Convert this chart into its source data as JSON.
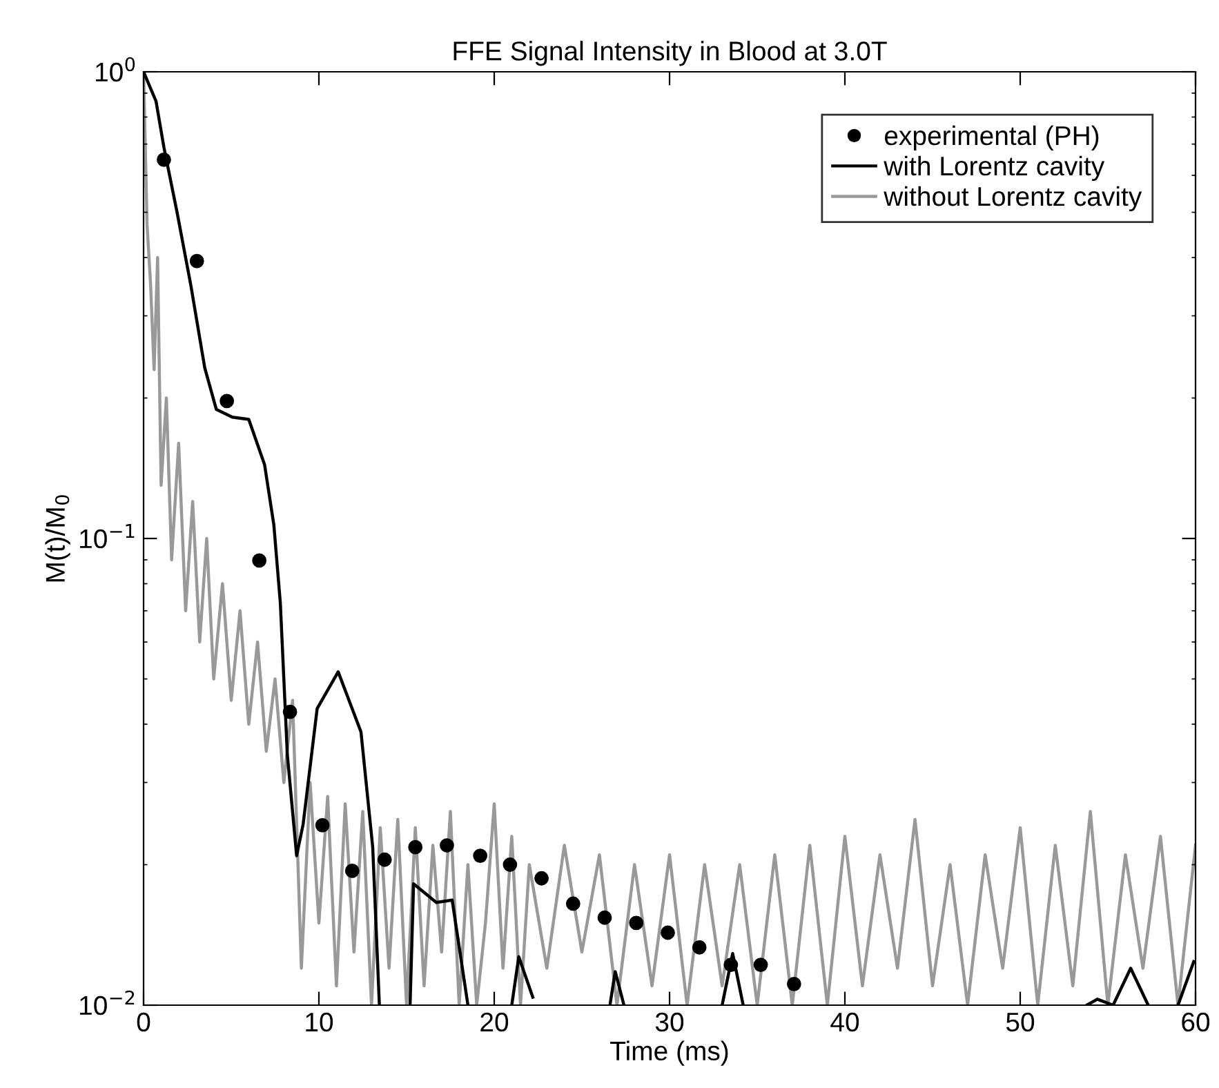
{
  "chart_data": {
    "type": "line",
    "title": "FFE Signal Intensity in Blood at 3.0T",
    "xlabel": "Time (ms)",
    "ylabel": "M(t)/M$_{0}$",
    "log": "y",
    "xlim": [
      0,
      60
    ],
    "ylim": [
      0.01,
      1
    ],
    "xticks": [
      0,
      10,
      20,
      30,
      40,
      50,
      60
    ],
    "yticks": [
      {
        "value": 0.01,
        "label": "10$^{−2}$"
      },
      {
        "value": 0.1,
        "label": "10$^{−1}$"
      },
      {
        "value": 1,
        "label": "10$^{0}$"
      }
    ],
    "grid": false,
    "legend": "top right",
    "series": [
      {
        "name": "experimental (PH)",
        "type": "scatter",
        "marker": "circle",
        "color": "#000000",
        "x": [
          1.16,
          3.04,
          4.75,
          6.6,
          8.35,
          10.2,
          11.9,
          13.75,
          15.5,
          17.3,
          19.2,
          20.9,
          22.7,
          24.5,
          26.3,
          28.1,
          29.9,
          31.7,
          33.5,
          35.2,
          37.1
        ],
        "values": [
          0.648,
          0.393,
          0.197,
          0.0897,
          0.0425,
          0.0243,
          0.0194,
          0.0205,
          0.0218,
          0.022,
          0.0209,
          0.02,
          0.0187,
          0.0165,
          0.0154,
          0.015,
          0.0143,
          0.0133,
          0.0122,
          0.0122,
          0.0111
        ]
      },
      {
        "name": "with Lorentz cavity",
        "line_style": "solid",
        "color": "#000000",
        "x": [
          0,
          0.71,
          1.16,
          1.91,
          2.7,
          3.49,
          4.15,
          5.06,
          6.0,
          6.9,
          7.43,
          7.8,
          8.2,
          8.73,
          9.1,
          9.9,
          11.1,
          12.4,
          13.07,
          13.45,
          14,
          15.2,
          15.4,
          16.7,
          17.6,
          18.5,
          19,
          21.0,
          21.4,
          22.2,
          23,
          26.6,
          26.9,
          27.4,
          28,
          33.0,
          33.6,
          34.2,
          35,
          53.8,
          54.4,
          55.3,
          56.3,
          57.3,
          58,
          59,
          59.9
        ],
        "values": [
          1,
          0.865,
          0.689,
          0.5,
          0.348,
          0.232,
          0.189,
          0.182,
          0.18,
          0.144,
          0.107,
          0.0728,
          0.0344,
          0.0209,
          0.0244,
          0.0432,
          0.0518,
          0.0385,
          0.0218,
          0.01,
          null,
          0.01,
          0.0182,
          0.0166,
          0.0168,
          0.01,
          null,
          0.01,
          0.0127,
          0.0104,
          null,
          0.01,
          0.0118,
          0.01,
          null,
          0.01,
          0.0129,
          0.01,
          null,
          0.01,
          0.0103,
          0.01,
          0.012,
          0.01,
          null,
          0.01,
          0.0124
        ]
      },
      {
        "name": "without Lorentz cavity",
        "line_style": "solid",
        "color": "#999999",
        "x": [
          0,
          0.2,
          0.4,
          0.6,
          0.8,
          1.0,
          1.3,
          1.6,
          2.0,
          2.4,
          2.8,
          3.2,
          3.6,
          4.0,
          4.5,
          5.0,
          5.5,
          6.0,
          6.5,
          7.0,
          7.5,
          8.0,
          8.5,
          9.0,
          9.5,
          10,
          10.5,
          11,
          11.5,
          12,
          12.5,
          13,
          13.5,
          14,
          14.5,
          15,
          15.5,
          16,
          16.5,
          17,
          17.5,
          18,
          18.5,
          19,
          19.5,
          20,
          20.5,
          21,
          21.5,
          22,
          23,
          24,
          25,
          26,
          27,
          28,
          29,
          30,
          31,
          32,
          33,
          34,
          35,
          36,
          37,
          38,
          39,
          40,
          41,
          42,
          43,
          44,
          45,
          46,
          47,
          48,
          49,
          50,
          51,
          52,
          53,
          54,
          55,
          56,
          57,
          58,
          59,
          60
        ],
        "values": [
          1,
          0.47,
          0.35,
          0.23,
          0.4,
          0.13,
          0.2,
          0.09,
          0.16,
          0.07,
          0.12,
          0.06,
          0.1,
          0.05,
          0.08,
          0.045,
          0.07,
          0.04,
          0.06,
          0.035,
          0.05,
          0.03,
          0.045,
          0.012,
          0.03,
          0.015,
          0.028,
          0.011,
          0.027,
          0.013,
          0.026,
          0.01,
          0.024,
          0.012,
          0.025,
          0.01,
          0.024,
          0.011,
          0.022,
          0.013,
          0.026,
          0.01,
          0.02,
          0.01,
          0.015,
          0.027,
          0.012,
          0.023,
          0.01,
          0.02,
          0.012,
          0.022,
          0.013,
          0.021,
          0.01,
          0.02,
          0.011,
          0.021,
          0.01,
          0.02,
          0.011,
          0.02,
          0.01,
          0.021,
          0.01,
          0.022,
          0.01,
          0.023,
          0.011,
          0.021,
          0.012,
          0.025,
          0.011,
          0.02,
          0.01,
          0.021,
          0.012,
          0.024,
          0.01,
          0.022,
          0.011,
          0.026,
          0.01,
          0.021,
          0.012,
          0.023,
          0.01,
          0.022
        ]
      }
    ]
  }
}
